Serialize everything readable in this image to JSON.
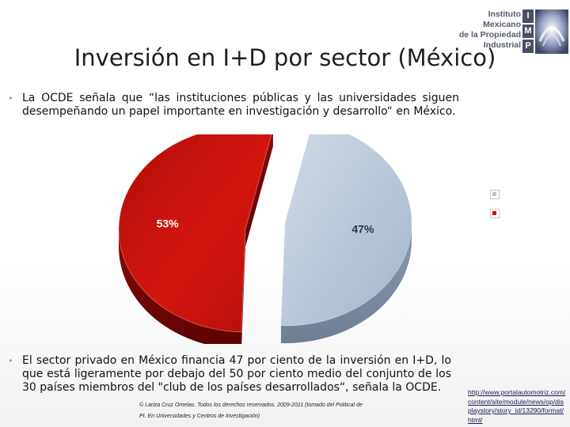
{
  "logo": {
    "lines": [
      "Instituto",
      "Mexicano",
      "de la Propiedad",
      "Industrial"
    ],
    "letters": [
      "I",
      "M",
      "P"
    ]
  },
  "slide": {
    "title": "Inversión en I+D por sector (México)",
    "bullet_1": "La OCDE señala que “las instituciones públicas y las universidades siguen desempeñando un papel importante en investigación y desarrollo“ en México.",
    "bullet_2": "El sector privado en México financia 47 por ciento de la inversión en I+D, lo que está ligeramente por debajo del 50 por ciento medio del conjunto de los 30 países miembros del \"club de los países desarrollados“, señala la OCDE.",
    "copyright_1": "© Lariza Cruz Ornelas. Todos los derechos reservados. 2009-2011 (tomado del Political de",
    "copyright_2": "PI. En Universidades y Centros de Investigación)",
    "source_url": "http://www.portalautomotriz.com/content/site/module/news/op/displaystory/story_id/13290/format/html/"
  },
  "chart_data": {
    "type": "pie",
    "title": "",
    "slices": [
      {
        "label": "53%",
        "value": 53,
        "color": "#c4120e"
      },
      {
        "label": "47%",
        "value": 47,
        "color": "#b3c3d6"
      }
    ],
    "legend": [
      {
        "label": "",
        "color": "#b3c3d6"
      },
      {
        "label": "",
        "color": "#c4120e"
      }
    ],
    "legend_position": "right",
    "exploded": true,
    "three_d": true
  }
}
